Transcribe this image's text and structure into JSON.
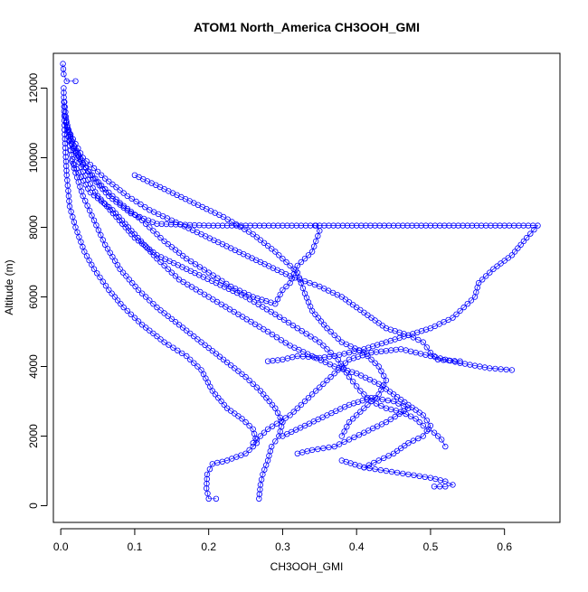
{
  "chart_data": {
    "type": "scatter",
    "title": "ATOM1 North_America CH3OOH_GMI",
    "xlabel": "CH3OOH_GMI",
    "ylabel": "Altitude (m)",
    "xlim": [
      -0.01,
      0.675
    ],
    "ylim": [
      -480,
      13000
    ],
    "x_ticks": [
      0.0,
      0.1,
      0.2,
      0.3,
      0.4,
      0.5,
      0.6
    ],
    "x_tick_labels": [
      "0.0",
      "0.1",
      "0.2",
      "0.3",
      "0.4",
      "0.5",
      "0.6"
    ],
    "y_ticks": [
      0,
      2000,
      4000,
      6000,
      8000,
      10000,
      12000
    ],
    "y_tick_labels": [
      "0",
      "2000",
      "4000",
      "6000",
      "8000",
      "10000",
      "12000"
    ],
    "grid": false,
    "marker": "open-circle",
    "line_style": "thin connecting line",
    "color": "#0000ff",
    "series": [
      {
        "points": [
          [
            0.003,
            12700
          ],
          [
            0.004,
            12400
          ],
          [
            0.008,
            12200
          ],
          [
            0.02,
            12200
          ]
        ]
      },
      {
        "points": [
          [
            0.004,
            12000
          ],
          [
            0.005,
            10800
          ],
          [
            0.008,
            9500
          ],
          [
            0.012,
            8600
          ],
          [
            0.02,
            8000
          ],
          [
            0.032,
            7300
          ],
          [
            0.045,
            6800
          ],
          [
            0.065,
            6200
          ],
          [
            0.085,
            5700
          ],
          [
            0.11,
            5200
          ],
          [
            0.14,
            4700
          ],
          [
            0.17,
            4300
          ],
          [
            0.19,
            3900
          ],
          [
            0.205,
            3300
          ],
          [
            0.225,
            2800
          ],
          [
            0.245,
            2500
          ],
          [
            0.26,
            2200
          ],
          [
            0.265,
            1800
          ],
          [
            0.25,
            1500
          ],
          [
            0.225,
            1300
          ],
          [
            0.205,
            1200
          ],
          [
            0.198,
            900
          ],
          [
            0.197,
            500
          ],
          [
            0.2,
            200
          ],
          [
            0.21,
            200
          ]
        ]
      },
      {
        "points": [
          [
            0.005,
            11600
          ],
          [
            0.01,
            10600
          ],
          [
            0.018,
            9700
          ],
          [
            0.03,
            8900
          ],
          [
            0.045,
            8200
          ],
          [
            0.06,
            7500
          ],
          [
            0.08,
            6800
          ],
          [
            0.105,
            6200
          ],
          [
            0.13,
            5700
          ],
          [
            0.16,
            5200
          ],
          [
            0.19,
            4700
          ],
          [
            0.22,
            4200
          ],
          [
            0.25,
            3700
          ],
          [
            0.27,
            3300
          ],
          [
            0.29,
            2800
          ],
          [
            0.3,
            2400
          ],
          [
            0.295,
            2000
          ],
          [
            0.285,
            1700
          ],
          [
            0.28,
            1300
          ],
          [
            0.273,
            900
          ],
          [
            0.27,
            600
          ],
          [
            0.268,
            200
          ]
        ]
      },
      {
        "points": [
          [
            0.006,
            11200
          ],
          [
            0.015,
            10400
          ],
          [
            0.03,
            9600
          ],
          [
            0.05,
            8900
          ],
          [
            0.075,
            8300
          ],
          [
            0.1,
            7700
          ],
          [
            0.13,
            7200
          ],
          [
            0.17,
            6800
          ],
          [
            0.21,
            6400
          ],
          [
            0.25,
            6000
          ],
          [
            0.29,
            5500
          ],
          [
            0.32,
            5100
          ],
          [
            0.35,
            4700
          ],
          [
            0.375,
            4200
          ],
          [
            0.39,
            3700
          ],
          [
            0.405,
            3300
          ],
          [
            0.42,
            3000
          ],
          [
            0.44,
            2800
          ],
          [
            0.46,
            2700
          ],
          [
            0.48,
            2500
          ],
          [
            0.49,
            2300
          ],
          [
            0.505,
            2100
          ],
          [
            0.515,
            1900
          ],
          [
            0.52,
            1700
          ]
        ]
      },
      {
        "points": [
          [
            0.007,
            11000
          ],
          [
            0.02,
            10200
          ],
          [
            0.04,
            9500
          ],
          [
            0.065,
            8900
          ],
          [
            0.095,
            8400
          ],
          [
            0.13,
            8100
          ],
          [
            0.2,
            8050
          ],
          [
            0.3,
            8050
          ],
          [
            0.4,
            8050
          ],
          [
            0.5,
            8050
          ],
          [
            0.6,
            8050
          ],
          [
            0.645,
            8050
          ],
          [
            0.63,
            7700
          ],
          [
            0.61,
            7200
          ],
          [
            0.585,
            6800
          ],
          [
            0.565,
            6400
          ],
          [
            0.56,
            6000
          ],
          [
            0.545,
            5700
          ],
          [
            0.53,
            5400
          ],
          [
            0.5,
            5100
          ],
          [
            0.47,
            4900
          ],
          [
            0.44,
            4700
          ],
          [
            0.41,
            4500
          ],
          [
            0.39,
            4400
          ],
          [
            0.37,
            4300
          ],
          [
            0.35,
            4250
          ],
          [
            0.32,
            4300
          ],
          [
            0.3,
            4200
          ],
          [
            0.28,
            4150
          ]
        ]
      },
      {
        "points": [
          [
            0.01,
            10800
          ],
          [
            0.03,
            10000
          ],
          [
            0.06,
            9400
          ],
          [
            0.09,
            8900
          ],
          [
            0.12,
            8500
          ],
          [
            0.15,
            8200
          ],
          [
            0.19,
            7800
          ],
          [
            0.23,
            7400
          ],
          [
            0.27,
            7000
          ],
          [
            0.31,
            6600
          ],
          [
            0.35,
            6300
          ],
          [
            0.38,
            6000
          ],
          [
            0.4,
            5700
          ],
          [
            0.42,
            5400
          ],
          [
            0.44,
            5100
          ],
          [
            0.47,
            4900
          ],
          [
            0.49,
            4700
          ],
          [
            0.5,
            4400
          ],
          [
            0.51,
            4200
          ],
          [
            0.54,
            4150
          ]
        ]
      },
      {
        "points": [
          [
            0.012,
            10500
          ],
          [
            0.03,
            9800
          ],
          [
            0.055,
            9200
          ],
          [
            0.08,
            8700
          ],
          [
            0.11,
            8200
          ],
          [
            0.14,
            7600
          ],
          [
            0.17,
            7100
          ],
          [
            0.2,
            6700
          ],
          [
            0.23,
            6300
          ],
          [
            0.26,
            6000
          ],
          [
            0.29,
            5800
          ],
          [
            0.3,
            6200
          ],
          [
            0.31,
            6400
          ],
          [
            0.32,
            6900
          ],
          [
            0.34,
            7300
          ],
          [
            0.35,
            7900
          ],
          [
            0.345,
            8050
          ]
        ]
      },
      {
        "points": [
          [
            0.015,
            9900
          ],
          [
            0.04,
            9000
          ],
          [
            0.07,
            8500
          ],
          [
            0.1,
            7800
          ],
          [
            0.13,
            7100
          ],
          [
            0.16,
            6500
          ],
          [
            0.2,
            6000
          ],
          [
            0.24,
            5500
          ],
          [
            0.28,
            5000
          ],
          [
            0.31,
            4600
          ],
          [
            0.34,
            4300
          ],
          [
            0.37,
            4000
          ],
          [
            0.4,
            3800
          ],
          [
            0.43,
            3500
          ],
          [
            0.45,
            3200
          ],
          [
            0.47,
            2900
          ],
          [
            0.49,
            2600
          ],
          [
            0.5,
            2300
          ],
          [
            0.49,
            2000
          ],
          [
            0.47,
            1800
          ],
          [
            0.45,
            1500
          ],
          [
            0.43,
            1300
          ],
          [
            0.41,
            1100
          ]
        ]
      },
      {
        "points": [
          [
            0.3,
            2000
          ],
          [
            0.33,
            2300
          ],
          [
            0.36,
            2600
          ],
          [
            0.39,
            2900
          ],
          [
            0.42,
            3100
          ],
          [
            0.45,
            3000
          ],
          [
            0.47,
            2800
          ],
          [
            0.44,
            2400
          ],
          [
            0.41,
            2100
          ],
          [
            0.39,
            1900
          ],
          [
            0.37,
            1700
          ],
          [
            0.34,
            1600
          ],
          [
            0.32,
            1500
          ]
        ]
      },
      {
        "points": [
          [
            0.38,
            1300
          ],
          [
            0.41,
            1100
          ],
          [
            0.44,
            1000
          ],
          [
            0.47,
            900
          ],
          [
            0.5,
            800
          ],
          [
            0.52,
            700
          ],
          [
            0.53,
            600
          ],
          [
            0.52,
            550
          ],
          [
            0.505,
            550
          ]
        ]
      },
      {
        "points": [
          [
            0.26,
            1800
          ],
          [
            0.28,
            2200
          ],
          [
            0.31,
            2600
          ],
          [
            0.33,
            3000
          ],
          [
            0.35,
            3400
          ],
          [
            0.37,
            3800
          ],
          [
            0.39,
            4200
          ],
          [
            0.42,
            4400
          ],
          [
            0.46,
            4500
          ],
          [
            0.5,
            4300
          ],
          [
            0.54,
            4100
          ],
          [
            0.58,
            3950
          ],
          [
            0.61,
            3900
          ]
        ]
      },
      {
        "points": [
          [
            0.1,
            9500
          ],
          [
            0.14,
            9100
          ],
          [
            0.18,
            8700
          ],
          [
            0.22,
            8300
          ],
          [
            0.26,
            7800
          ],
          [
            0.29,
            7300
          ],
          [
            0.32,
            6700
          ],
          [
            0.33,
            6100
          ],
          [
            0.34,
            5600
          ],
          [
            0.36,
            5100
          ],
          [
            0.38,
            4700
          ],
          [
            0.41,
            4400
          ],
          [
            0.43,
            4000
          ],
          [
            0.44,
            3600
          ],
          [
            0.43,
            3200
          ],
          [
            0.41,
            2800
          ],
          [
            0.39,
            2400
          ],
          [
            0.38,
            2000
          ]
        ]
      }
    ]
  }
}
